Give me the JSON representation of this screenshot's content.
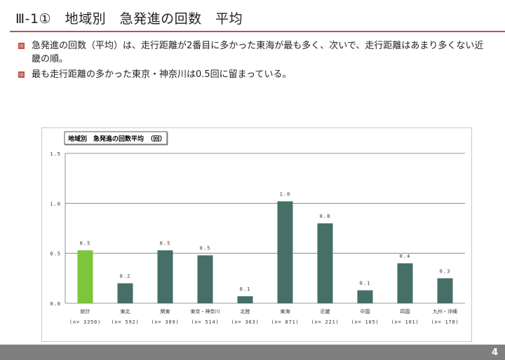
{
  "slide": {
    "title": "Ⅲ-1①　地域別　急発進の回数　平均",
    "bullets": [
      "急発進の回数（平均）は、走行距離が2番目に多かった東海が最も多く、次いで、走行距離はあまり多くない近畿の順。",
      "最も走行距離の多かった東京・神奈川は0.5回に留まっている。"
    ],
    "page_number": "4"
  },
  "colors": {
    "accent": "#c0504d",
    "bar_total": "#7dc63b",
    "bar_region": "#456f67",
    "footer": "#7f7f7f"
  },
  "chart_data": {
    "type": "bar",
    "title": "地域別　急発進の回数平均　（回）",
    "categories": [
      "総計",
      "東北",
      "関東",
      "東京・神奈川",
      "北陸",
      "東海",
      "近畿",
      "中国",
      "四国",
      "九州・沖縄"
    ],
    "sample_sizes": [
      "(n= 3350)",
      "(n= 592)",
      "(n= 369)",
      "(n= 514)",
      "(n= 363)",
      "(n= 871)",
      "(n= 221)",
      "(n= 105)",
      "(n= 101)",
      "(n= 178)"
    ],
    "values": [
      0.53,
      0.2,
      0.53,
      0.48,
      0.07,
      1.02,
      0.8,
      0.13,
      0.4,
      0.25
    ],
    "value_labels": [
      "0.5",
      "0.2",
      "0.5",
      "0.5",
      "0.1",
      "1.0",
      "0.8",
      "0.1",
      "0.4",
      "0.3"
    ],
    "yticks": [
      "0.0",
      "0.5",
      "1.0",
      "1.5"
    ],
    "ylim": [
      0,
      1.5
    ],
    "grid": true,
    "legend": "none"
  }
}
